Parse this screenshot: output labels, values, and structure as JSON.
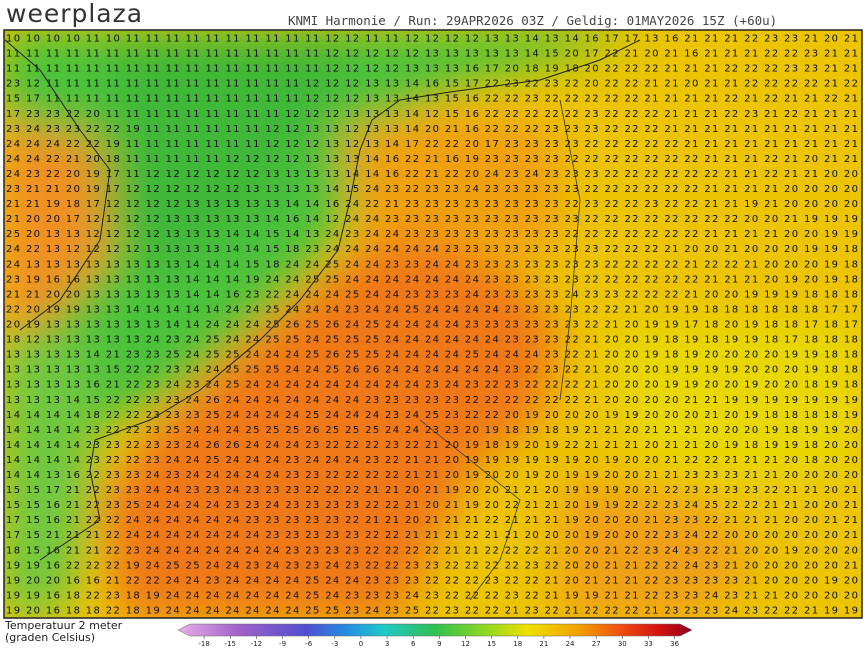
{
  "header": {
    "logo": "weerplaza",
    "info": "KNMI Harmonie / Run: 29APR2026 03Z / Geldig: 01MAY2026 15Z (+60u)"
  },
  "map": {
    "rows": [
      "10 10 10 10 11 10 11 11 11 11 11 11 11 11 11 11 12 12 11 11 12 12 12 12 13 13 14 13 14 16 17 17 13 16 21 21 21 22 23 23 21 20 21",
      "11 11 11 11 11 11 11 11 11 11 11 11 11 11 11 11 12 12 12 12 12 13 13 13 13 13 14 15 20 17 22 21 20 21 16 21 21 21 22 22 23 21 21",
      "11 11 11 11 11 11 11 11 11 11 11 11 11 11 11 11 12 12 12 12 13 13 13 16 17 20 18 19 18 20 22 22 22 21 21 21 22 22 22 23 23 21 21",
      "23 12 11 11 11 11 11 11 11 11 11 11 11 11 11 12 12 12 13 13 14 16 15 17 22 23 22 23 22 20 22 22 21 21 20 21 21 22 22 22 22 21 22",
      "15 17 11 11 11 11 11 11 11 11 11 11 11 11 11 12 12 12 13 13 14 13 15 16 22 22 23 22 22 22 22 22 21 21 21 21 22 21 22 21 21 22 21",
      "17 23 23 22 20 11 11 11 11 11 11 11 11 11 12 12 12 13 13 13 14 12 15 16 22 22 22 22 22 23 22 22 22 21 21 21 22 23 21 22 21 21 21",
      "23 24 23 23 22 22 19 11 11 11 11 11 11 12 12 13 13 12 13 13 14 20 21 16 22 22 22 23 23 23 22 22 22 21 21 21 21 21 21 21 21 21 21",
      "24 24 24 22 22 19 11 11 11 11 11 11 11 12 12 12 13 12 13 14 17 22 22 20 17 23 23 23 23 22 22 22 22 22 21 21 21 21 21 21 21 21 21",
      "24 24 22 21 20 18 11 11 11 11 11 12 12 12 12 13 13 13 14 16 22 21 16 19 23 23 23 23 22 22 22 22 22 22 22 21 21 21 22 21 20 21 21",
      "24 23 22 20 19 17 11 12 12 12 12 12 12 13 13 13 13 14 14 16 22 21 22 20 24 23 24 23 23 23 22 22 22 22 22 22 21 21 22 21 21 20 20",
      "23 21 21 20 19 17 12 12 12 12 12 12 13 13 13 13 14 15 24 23 22 23 23 24 23 23 23 23 23 22 22 22 22 22 22 21 21 21 21 20 20 20 20",
      "21 21 19 18 17 12 12 12 12 13 13 13 13 13 14 14 16 24 22 21 23 23 23 23 23 23 23 23 22 23 22 22 23 22 22 21 21 19 21 20 20 20 20",
      "21 20 20 17 12 12 12 12 13 13 13 13 13 14 16 14 12 24 24 23 23 23 23 23 23 23 23 23 23 22 22 22 22 22 22 22 22 20 20 21 19 19 19",
      "25 20 13 13 12 12 12 12 13 13 13 14 14 15 14 13 24 23 24 24 23 23 23 23 23 23 23 23 22 22 22 22 22 22 22 21 21 21 21 20 20 19 19",
      "24 22 13 12 12 12 12 13 13 13 13 14 14 15 18 23 24 24 24 24 24 24 23 23 23 23 23 23 23 23 22 22 22 21 20 20 21 20 20 20 19 19 18",
      "24 13 13 13 13 13 13 13 13 14 14 14 15 18 24 24 25 24 24 23 23 24 24 23 23 23 23 23 23 23 22 22 22 22 21 22 22 21 20 20 20 19 18",
      "23 19 16 16 13 13 13 13 13 14 14 14 19 24 24 25 25 24 24 24 24 24 24 24 23 23 23 23 23 22 22 22 22 22 22 21 21 21 20 19 20 19 18",
      "21 21 20 20 13 13 13 13 13 14 14 16 23 22 24 24 24 25 24 24 23 23 23 24 23 23 23 23 24 23 23 22 22 22 21 20 20 19 19 19 18 18 18",
      "22 20 19 19 13 13 14 14 14 14 14 24 24 25 24 24 24 23 24 24 25 24 24 24 24 23 23 23 23 22 22 21 20 19 19 18 18 18 18 18 18 17 17",
      "20 19 13 13 13 13 13 13 14 14 24 24 24 25 26 25 26 24 25 24 24 24 24 23 23 23 23 23 23 22 21 20 19 19 17 18 20 19 18 18 17 18 17",
      "18 12 13 13 13 13 13 24 23 24 25 24 24 25 25 24 25 25 25 24 24 24 24 24 24 23 23 23 22 21 20 20 19 18 19 18 19 19 18 17 18 18 18",
      "13 13 13 13 14 21 23 23 25 24 25 25 24 24 24 25 26 25 25 24 24 24 24 25 24 24 24 23 22 21 20 20 19 18 19 20 20 20 20 19 19 18 18",
      "13 13 13 13 13 15 22 22 23 24 24 25 25 25 24 24 25 26 26 24 24 24 24 24 24 23 22 23 22 21 20 20 20 19 19 19 19 20 20 20 19 18 18",
      "13 13 13 13 16 21 22 23 24 23 24 25 24 24 24 24 24 24 24 24 24 23 24 23 22 23 22 22 22 21 20 20 20 19 19 20 20 19 20 20 18 19 18",
      "13 13 13 14 15 22 22 23 23 24 26 24 24 24 24 24 24 24 23 23 23 23 23 22 22 22 22 22 22 21 20 20 20 20 21 21 19 19 19 19 19 19 19",
      "14 14 14 14 18 22 22 23 23 23 25 24 24 24 24 25 24 24 24 23 24 25 23 22 22 20 19 20 20 20 19 19 20 20 20 21 20 19 18 18 18 18 19",
      "14 14 14 14 23 22 22 23 25 24 24 24 25 25 25 26 25 25 25 24 24 23 23 20 19 18 19 18 19 21 21 20 21 21 21 20 20 20 19 18 19 19 20",
      "14 14 14 14 23 23 22 23 23 24 26 26 24 24 24 23 22 22 22 23 22 21 20 19 18 19 20 19 22 21 21 21 20 21 21 20 19 18 19 19 18 20 20",
      "14 14 14 14 23 22 22 23 24 24 25 24 24 24 23 24 24 24 23 22 21 21 20 19 19 19 19 19 19 20 19 20 20 21 22 22 21 21 21 20 18 20 20",
      "14 14 13 16 22 23 23 24 23 24 24 24 24 24 23 23 22 22 22 22 21 21 20 19 20 20 19 20 19 19 20 20 21 21 23 23 23 21 21 20 20 20 20",
      "15 15 17 21 22 23 23 24 24 23 23 24 23 23 23 22 22 22 21 21 20 21 19 20 20 21 21 20 19 19 19 20 21 22 23 23 23 23 22 21 21 20 21",
      "15 15 16 21 22 23 25 24 24 24 24 23 23 24 23 23 23 23 22 22 21 20 21 19 20 22 21 21 20 19 19 22 22 23 24 25 22 22 21 21 20 20 21",
      "17 15 16 21 22 22 24 24 24 24 24 24 23 23 23 23 23 22 21 21 20 21 21 21 22 21 21 21 19 20 20 20 21 23 23 22 21 21 21 20 20 21 21",
      "17 15 21 21 21 22 24 24 24 24 24 24 24 23 23 23 23 23 22 22 21 21 21 22 21 21 20 20 20 19 20 20 22 23 24 22 20 20 20 20 20 20 21",
      "18 15 16 21 21 22 23 24 24 24 24 24 24 24 23 23 23 23 22 22 22 22 21 21 22 22 22 21 20 20 21 22 23 24 23 22 21 20 20 19 20 20 20",
      "19 19 16 22 22 22 19 24 25 25 24 24 23 24 23 23 24 23 22 22 23 23 22 22 22 22 23 22 20 20 21 21 22 22 24 23 21 20 20 20 20 20 21",
      "19 20 20 16 16 21 22 22 24 24 23 24 24 24 24 25 24 24 23 23 23 22 22 22 23 22 22 21 20 21 21 21 22 23 23 23 23 21 20 20 20 19 20",
      "19 19 16 18 22 23 18 19 24 24 24 24 24 24 24 25 24 23 23 23 24 23 22 22 22 23 22 21 19 19 21 21 22 23 23 24 23 21 21 20 20 20 20",
      "19 20 16 18 18 22 18 19 24 24 24 24 24 24 24 25 25 23 24 23 25 22 23 22 22 21 23 22 21 22 22 22 21 23 23 23 24 23 22 22 21 19 19"
    ]
  },
  "legend": {
    "title": [
      "Temperatuur 2 meter",
      "(graden Celsius)"
    ],
    "lim": [
      -21,
      38
    ],
    "ticks": [
      -18,
      -15,
      -12,
      -9,
      -6,
      -3,
      0,
      3,
      6,
      9,
      12,
      15,
      18,
      21,
      24,
      27,
      30,
      33,
      36
    ]
  }
}
